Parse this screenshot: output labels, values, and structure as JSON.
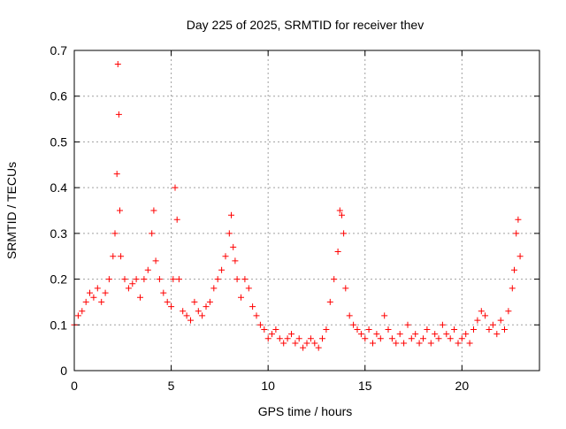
{
  "chart_data": {
    "type": "scatter",
    "title": "Day 225 of 2025, SRMTID for receiver thev",
    "xlabel": "GPS time / hours",
    "ylabel": "SRMTID / TECUs",
    "xlim": [
      0,
      24
    ],
    "ylim": [
      0,
      0.7
    ],
    "xticks": [
      0,
      5,
      10,
      15,
      20
    ],
    "xtick_labels": [
      "0",
      "5",
      "10",
      "15",
      "20"
    ],
    "yticks": [
      0,
      0.1,
      0.2,
      0.3,
      0.4,
      0.5,
      0.6,
      0.7
    ],
    "ytick_labels": [
      "0",
      "0.1",
      "0.2",
      "0.3",
      "0.4",
      "0.5",
      "0.6",
      "0.7"
    ],
    "grid": true,
    "marker": "+",
    "marker_color": "#ff0000",
    "series": [
      {
        "name": "SRMTID",
        "x": [
          0.0,
          0.2,
          0.4,
          0.6,
          0.8,
          1.0,
          1.2,
          1.4,
          1.6,
          1.8,
          2.0,
          2.1,
          2.2,
          2.25,
          2.3,
          2.35,
          2.4,
          2.6,
          2.8,
          3.0,
          3.2,
          3.4,
          3.6,
          3.8,
          4.0,
          4.1,
          4.2,
          4.4,
          4.6,
          4.8,
          5.0,
          5.1,
          5.2,
          5.3,
          5.4,
          5.6,
          5.8,
          6.0,
          6.2,
          6.4,
          6.6,
          6.8,
          7.0,
          7.2,
          7.4,
          7.6,
          7.8,
          8.0,
          8.1,
          8.2,
          8.3,
          8.4,
          8.6,
          8.8,
          9.0,
          9.2,
          9.4,
          9.6,
          9.8,
          10.0,
          10.2,
          10.4,
          10.6,
          10.8,
          11.0,
          11.2,
          11.4,
          11.6,
          11.8,
          12.0,
          12.2,
          12.4,
          12.6,
          12.8,
          13.0,
          13.2,
          13.4,
          13.6,
          13.7,
          13.8,
          13.9,
          14.0,
          14.2,
          14.4,
          14.6,
          14.8,
          15.0,
          15.2,
          15.4,
          15.6,
          15.8,
          16.0,
          16.2,
          16.4,
          16.6,
          16.8,
          17.0,
          17.2,
          17.4,
          17.6,
          17.8,
          18.0,
          18.2,
          18.4,
          18.6,
          18.8,
          19.0,
          19.2,
          19.4,
          19.6,
          19.8,
          20.0,
          20.2,
          20.4,
          20.6,
          20.8,
          21.0,
          21.2,
          21.4,
          21.6,
          21.8,
          22.0,
          22.2,
          22.4,
          22.6,
          22.7,
          22.8,
          22.9,
          23.0
        ],
        "y": [
          0.1,
          0.12,
          0.13,
          0.15,
          0.17,
          0.16,
          0.18,
          0.15,
          0.17,
          0.2,
          0.25,
          0.3,
          0.43,
          0.67,
          0.56,
          0.35,
          0.25,
          0.2,
          0.18,
          0.19,
          0.2,
          0.16,
          0.2,
          0.22,
          0.3,
          0.35,
          0.24,
          0.2,
          0.17,
          0.15,
          0.14,
          0.2,
          0.4,
          0.33,
          0.2,
          0.13,
          0.12,
          0.11,
          0.15,
          0.13,
          0.12,
          0.14,
          0.15,
          0.18,
          0.2,
          0.22,
          0.25,
          0.3,
          0.34,
          0.27,
          0.24,
          0.2,
          0.16,
          0.2,
          0.18,
          0.14,
          0.12,
          0.1,
          0.09,
          0.07,
          0.08,
          0.09,
          0.07,
          0.06,
          0.07,
          0.08,
          0.06,
          0.07,
          0.05,
          0.06,
          0.07,
          0.06,
          0.05,
          0.07,
          0.09,
          0.15,
          0.2,
          0.26,
          0.35,
          0.34,
          0.3,
          0.18,
          0.12,
          0.1,
          0.09,
          0.08,
          0.07,
          0.09,
          0.06,
          0.08,
          0.07,
          0.12,
          0.09,
          0.07,
          0.06,
          0.08,
          0.06,
          0.1,
          0.07,
          0.08,
          0.06,
          0.07,
          0.09,
          0.06,
          0.08,
          0.07,
          0.1,
          0.08,
          0.07,
          0.09,
          0.06,
          0.07,
          0.08,
          0.06,
          0.09,
          0.11,
          0.13,
          0.12,
          0.09,
          0.1,
          0.08,
          0.11,
          0.09,
          0.13,
          0.18,
          0.22,
          0.3,
          0.33,
          0.25
        ]
      }
    ]
  }
}
